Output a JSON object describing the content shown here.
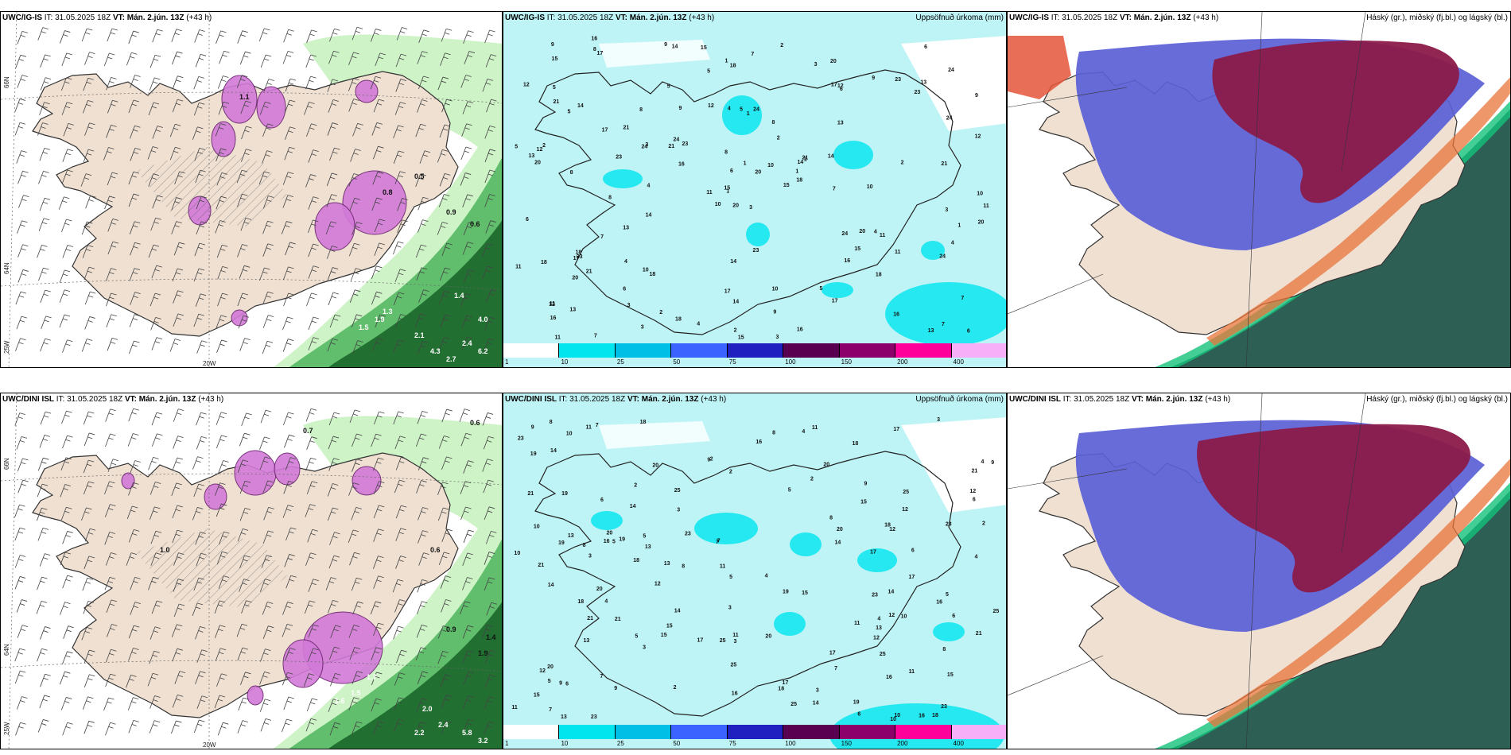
{
  "panels": [
    {
      "model": "UWC/IG-IS",
      "init": "IT: 31.05.2025 18Z",
      "vt_label": "VT:",
      "valid": "Mán. 2.jún. 13Z",
      "lead": "(+43 h)",
      "right_title": "",
      "type": "wind"
    },
    {
      "model": "UWC/IG-IS",
      "init": "IT: 31.05.2025 18Z",
      "vt_label": "VT:",
      "valid": "Mán. 2.jún. 13Z",
      "lead": "(+43 h)",
      "right_title": "Uppsöfnuð úrkoma (mm)",
      "type": "precip"
    },
    {
      "model": "UWC/IG-IS",
      "init": "IT: 31.05.2025 18Z",
      "vt_label": "VT:",
      "valid": "Mán. 2.jún. 13Z",
      "lead": "(+43 h)",
      "right_title": "Háský (gr.), miðský (fj.bl.) og lágský (bl.)",
      "type": "cloud"
    },
    {
      "model": "UWC/DINI ISL",
      "init": "IT: 31.05.2025 18Z",
      "vt_label": "VT:",
      "valid": "Mán. 2.jún. 13Z",
      "lead": "(+43 h)",
      "right_title": "",
      "type": "wind"
    },
    {
      "model": "UWC/DINI ISL",
      "init": "IT: 31.05.2025 18Z",
      "vt_label": "VT:",
      "valid": "Mán. 2.jún. 13Z",
      "lead": "(+43 h)",
      "right_title": "Uppsöfnuð úrkoma (mm)",
      "type": "precip"
    },
    {
      "model": "UWC/DINI ISL",
      "init": "IT: 31.05.2025 18Z",
      "vt_label": "VT:",
      "valid": "Mán. 2.jún. 13Z",
      "lead": "(+43 h)",
      "right_title": "Háský (gr.), miðský (fj.bl.) og lágský (bl.)",
      "type": "cloud"
    }
  ],
  "grid_labels": {
    "lat66": "66N",
    "lat64": "64N",
    "lon25": "25W",
    "lon20": "20W"
  },
  "colorbar": {
    "ticks": [
      "1",
      "10",
      "25",
      "50",
      "75",
      "100",
      "150",
      "200",
      "400"
    ],
    "colors": [
      "#ffffff",
      "#00e5ee",
      "#00bfe6",
      "#3a63ff",
      "#2020c0",
      "#5a0050",
      "#8b006b",
      "#ff009a",
      "#f7b0f7"
    ]
  },
  "colors": {
    "land": "#efe0d2",
    "sea_precip": "#bff4f7",
    "cloud_high": "#8b1a4a",
    "cloud_mid": "#5a5fd6",
    "cloud_low": "#2d5f55",
    "rain_green_light": "#c8f2c0",
    "rain_green_dark": "#1f6b2e",
    "convective": "#d27ad8"
  },
  "sample_values_top": [
    "1.1",
    "0.8",
    "0.5",
    "0.6",
    "0.9",
    "1.5",
    "1.3",
    "1.9",
    "2.1",
    "4.3",
    "2.7",
    "6.2",
    "1.4",
    "4.0",
    "2.4"
  ],
  "sample_values_bottom": [
    "0.7",
    "0.6",
    "0.9",
    "1.4",
    "1.5",
    "1.6",
    "2.0",
    "2.2",
    "2.4",
    "5.8",
    "3.2",
    "0.6",
    "1.0",
    "1.9",
    "1.7"
  ],
  "precip_values_top": [
    "3",
    "5",
    "1",
    "11",
    "14",
    "18",
    "20",
    "24",
    "12",
    "15",
    "17",
    "6",
    "8",
    "9",
    "10",
    "13",
    "7",
    "4",
    "2",
    "21",
    "23",
    "16"
  ],
  "precip_values_bottom": [
    "3",
    "5",
    "11",
    "14",
    "18",
    "20",
    "25",
    "12",
    "15",
    "17",
    "6",
    "8",
    "9",
    "10",
    "13",
    "7",
    "4",
    "2",
    "21",
    "23",
    "16",
    "19"
  ]
}
